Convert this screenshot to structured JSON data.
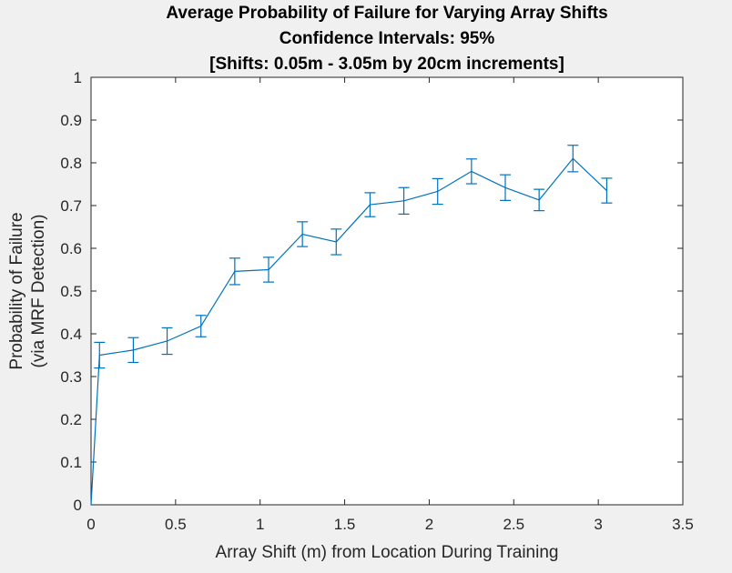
{
  "chart_data": {
    "type": "line",
    "title": [
      "Average Probability of Failure for Varying Array Shifts",
      "Confidence Intervals: 95%",
      "[Shifts: 0.05m - 3.05m by 20cm increments]"
    ],
    "xlabel": "Array Shift (m) from Location During Training",
    "ylabel": [
      "Probability of Failure",
      "(via MRF Detection)"
    ],
    "xlim": [
      0,
      3.5
    ],
    "ylim": [
      0,
      1
    ],
    "xticks": [
      "0",
      "0.5",
      "1",
      "1.5",
      "2",
      "2.5",
      "3",
      "3.5"
    ],
    "yticks": [
      "0",
      "0.1",
      "0.2",
      "0.3",
      "0.4",
      "0.5",
      "0.6",
      "0.7",
      "0.8",
      "0.9",
      "1"
    ],
    "grid": false,
    "legend": "none",
    "series": [
      {
        "color": "#0072bd",
        "x": [
          0,
          0.05,
          0.25,
          0.45,
          0.65,
          0.85,
          1.05,
          1.25,
          1.45,
          1.65,
          1.85,
          2.05,
          2.25,
          2.45,
          2.65,
          2.85,
          3.05
        ],
        "y": [
          0,
          0.35,
          0.362,
          0.383,
          0.418,
          0.546,
          0.55,
          0.633,
          0.615,
          0.702,
          0.711,
          0.733,
          0.78,
          0.742,
          0.713,
          0.81,
          0.735
        ],
        "err": [
          0,
          0.03,
          0.029,
          0.031,
          0.025,
          0.031,
          0.029,
          0.029,
          0.03,
          0.028,
          0.031,
          0.03,
          0.029,
          0.03,
          0.025,
          0.031,
          0.029
        ]
      }
    ]
  }
}
